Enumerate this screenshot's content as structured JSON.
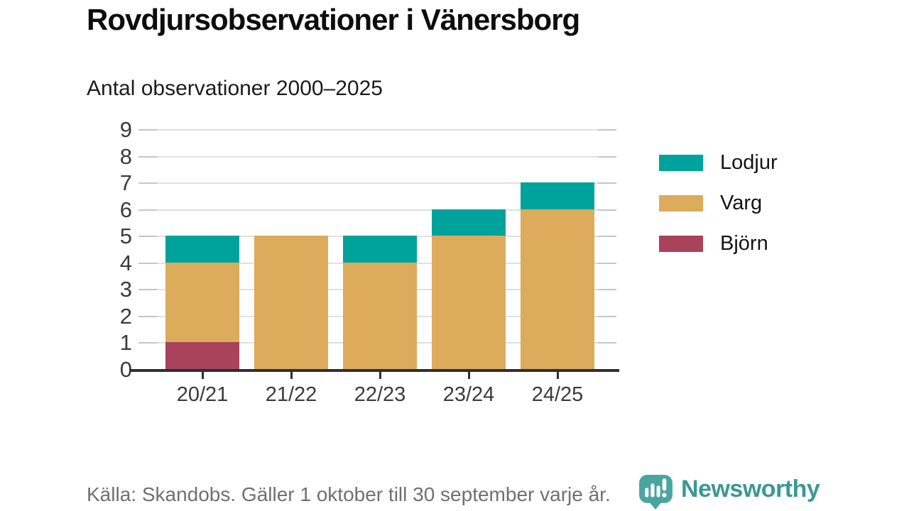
{
  "page": {
    "title": "Rovdjursobservationer i Vänersborg",
    "subtitle": "Antal observationer 2000–2025",
    "source_note": "Källa: Skandobs. Gäller 1 oktober till 30 september varje år.",
    "brand": {
      "name": "Newsworthy",
      "icon": "newsworthy-speech-bubble-bar-chart-icon",
      "text_color": "#3b9894",
      "icon_color": "#4aa5a1"
    }
  },
  "colors": {
    "lodjur": "#00a39b",
    "varg": "#dcab5b",
    "bjorn": "#a9425b",
    "gridline": "#e0e0e0",
    "axis": "#2f2f2f",
    "axis_label": "#3b3b3b"
  },
  "chart_data": {
    "type": "bar",
    "stacked": true,
    "title": "Rovdjursobservationer i Vänersborg",
    "subtitle": "Antal observationer 2000–2025",
    "categories": [
      "20/21",
      "21/22",
      "22/23",
      "23/24",
      "24/25"
    ],
    "series": [
      {
        "name": "Björn",
        "color": "#a9425b",
        "values": [
          1,
          0,
          0,
          0,
          0
        ]
      },
      {
        "name": "Varg",
        "color": "#dcab5b",
        "values": [
          3,
          5,
          4,
          5,
          6
        ]
      },
      {
        "name": "Lodjur",
        "color": "#00a39b",
        "values": [
          1,
          0,
          1,
          1,
          1
        ]
      }
    ],
    "totals": [
      5,
      5,
      5,
      6,
      7
    ],
    "xlabel": "",
    "ylabel": "",
    "ylim": [
      0,
      9
    ],
    "yticks": [
      0,
      1,
      2,
      3,
      4,
      5,
      6,
      7,
      8,
      9
    ],
    "grid": true,
    "legend_position": "right",
    "legend": [
      {
        "label": "Lodjur",
        "color": "#00a39b"
      },
      {
        "label": "Varg",
        "color": "#dcab5b"
      },
      {
        "label": "Björn",
        "color": "#a9425b"
      }
    ]
  }
}
